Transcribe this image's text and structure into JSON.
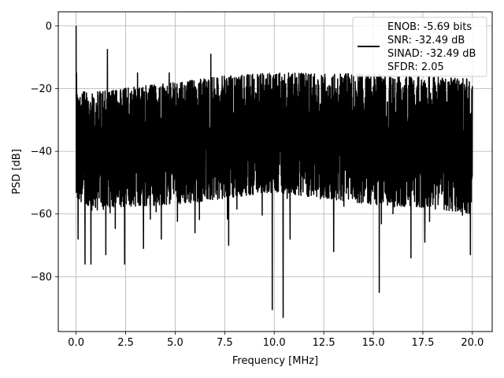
{
  "chart_data": {
    "type": "line",
    "title": "",
    "xlabel": "Frequency [MHz]",
    "ylabel": "PSD [dB]",
    "xlim": [
      -0.9,
      21.0
    ],
    "ylim": [
      -97.5,
      4.5
    ],
    "xticks": [
      0.0,
      2.5,
      5.0,
      7.5,
      10.0,
      12.5,
      15.0,
      17.5,
      20.0
    ],
    "xtick_labels": [
      "0.0",
      "2.5",
      "5.0",
      "7.5",
      "10.0",
      "12.5",
      "15.0",
      "17.5",
      "20.0"
    ],
    "yticks": [
      0,
      -20,
      -40,
      -60,
      -80
    ],
    "ytick_labels": [
      "0",
      "−20",
      "−40",
      "−60",
      "−80"
    ],
    "grid": true,
    "legend_position": "top-right",
    "legend": [
      "ENOB: -5.69 bits",
      "SNR: -32.49 dB",
      "SINAD: -32.49 dB",
      "SFDR: 2.05"
    ],
    "series_color": "#000000",
    "series": [
      {
        "x_range": [
          0.0,
          20.0
        ],
        "noise_top": [
          [
            0.0,
            -21
          ],
          [
            1.0,
            -21
          ],
          [
            5.0,
            -18
          ],
          [
            7.5,
            -16
          ],
          [
            10.0,
            -15
          ],
          [
            12.5,
            -15
          ],
          [
            15.0,
            -15.5
          ],
          [
            17.5,
            -16
          ],
          [
            20.0,
            -17
          ]
        ],
        "noise_bottom": [
          [
            0.0,
            -56
          ],
          [
            1.0,
            -58
          ],
          [
            5.0,
            -57
          ],
          [
            7.5,
            -55
          ],
          [
            10.0,
            -53
          ],
          [
            12.5,
            -55
          ],
          [
            15.0,
            -57
          ],
          [
            17.5,
            -58
          ],
          [
            20.0,
            -60
          ]
        ],
        "peaks": [
          [
            0.0,
            0.0
          ],
          [
            0.02,
            -15
          ],
          [
            0.05,
            -22
          ],
          [
            1.58,
            -7.5
          ],
          [
            3.1,
            -15
          ],
          [
            4.7,
            -15
          ],
          [
            6.8,
            -9
          ]
        ],
        "dips": [
          [
            0.1,
            -68
          ],
          [
            0.45,
            -76
          ],
          [
            0.75,
            -76
          ],
          [
            1.5,
            -73
          ],
          [
            2.45,
            -76
          ],
          [
            3.4,
            -71
          ],
          [
            4.3,
            -68
          ],
          [
            6.0,
            -66
          ],
          [
            7.7,
            -70
          ],
          [
            9.9,
            -90.5
          ],
          [
            10.45,
            -93
          ],
          [
            10.8,
            -68
          ],
          [
            13.0,
            -72
          ],
          [
            15.3,
            -85
          ],
          [
            16.9,
            -74
          ],
          [
            17.6,
            -69
          ],
          [
            19.9,
            -73
          ]
        ]
      }
    ]
  }
}
